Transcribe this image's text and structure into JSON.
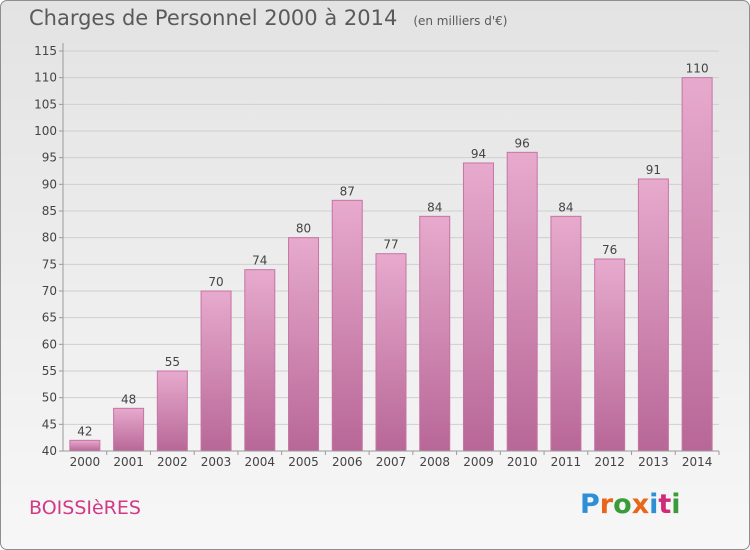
{
  "header": {
    "title": "Charges de Personnel 2000 à 2014",
    "subtitle": "(en milliers d'€)"
  },
  "footer": {
    "place": "BOISSIèRES",
    "logo_text": "Proxiti",
    "logo_colors": [
      "#2e8fd6",
      "#e8651a",
      "#3a9b3a",
      "#e8651a",
      "#2e8fd6",
      "#d02a7a",
      "#3a9b3a"
    ]
  },
  "colors": {
    "bar_top": "#e7aacd",
    "bar_bottom": "#b86797",
    "bar_stroke": "#c774a4",
    "grid": "#cfcfcf",
    "axis": "#9a9a9a",
    "text": "#444444"
  },
  "chart_data": {
    "type": "bar",
    "title": "Charges de Personnel 2000 à 2014",
    "subtitle": "(en milliers d'€)",
    "categories": [
      "2000",
      "2001",
      "2002",
      "2003",
      "2004",
      "2005",
      "2006",
      "2007",
      "2008",
      "2009",
      "2010",
      "2011",
      "2012",
      "2013",
      "2014"
    ],
    "values": [
      42,
      48,
      55,
      70,
      74,
      80,
      87,
      77,
      84,
      94,
      96,
      84,
      76,
      91,
      110
    ],
    "ylim": [
      40,
      115
    ],
    "yticks": [
      40,
      45,
      50,
      55,
      60,
      65,
      70,
      75,
      80,
      85,
      90,
      95,
      100,
      105,
      110,
      115
    ],
    "grid": true,
    "data_labels": true
  }
}
